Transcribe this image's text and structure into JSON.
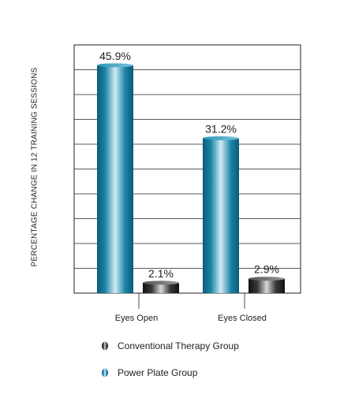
{
  "chart_data": {
    "type": "bar",
    "categories": [
      "Eyes Open",
      "Eyes Closed"
    ],
    "series": [
      {
        "name": "Power Plate Group",
        "values": [
          45.9,
          31.2
        ],
        "labels": [
          "45.9%",
          "31.2%"
        ],
        "color": "#1c86a8"
      },
      {
        "name": "Conventional Therapy Group",
        "values": [
          2.1,
          2.9
        ],
        "labels": [
          "2.1%",
          "2.9%"
        ],
        "color": "#2a2a2a"
      }
    ],
    "ylabel": "PERCENTAGE CHANGE IN 12 TRAINING SESSIONS",
    "ylim": [
      0,
      50
    ],
    "y_gridlines": 10,
    "grid": true,
    "legend_placement": "bottom"
  },
  "legend": [
    {
      "label": "Conventional Therapy Group",
      "icon": "conventional-therapy-marker-icon",
      "color": "#2a2a2a"
    },
    {
      "label": "Power Plate Group",
      "icon": "power-plate-marker-icon",
      "color": "#1c86a8"
    }
  ]
}
